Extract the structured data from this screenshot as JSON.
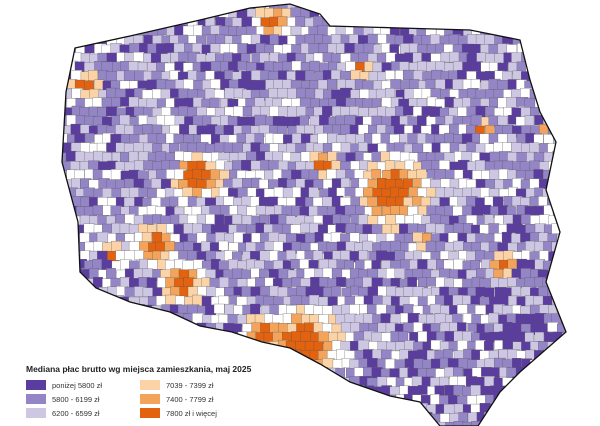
{
  "legend": {
    "title": "Mediana płac brutto wg miejsca zamieszkania, maj 2025",
    "items": [
      {
        "label": "poniżej 5800 zł",
        "color": "#5a3d9e"
      },
      {
        "label": "7039 - 7399 zł",
        "color": "#fcd3a6"
      },
      {
        "label": "5800 - 6199 zł",
        "color": "#9486c6"
      },
      {
        "label": "7400 - 7799 zł",
        "color": "#f4a35a"
      },
      {
        "label": "6200 - 6599 zł",
        "color": "#cdc7e3"
      },
      {
        "label": "7800 zł i więcej",
        "color": "#e2620f"
      }
    ]
  },
  "map": {
    "region": "Polska",
    "unit_fill_colors": [
      "#5a3d9e",
      "#9486c6",
      "#cdc7e3",
      "#ffffff",
      "#fcd3a6",
      "#f4a35a",
      "#e2620f"
    ]
  }
}
